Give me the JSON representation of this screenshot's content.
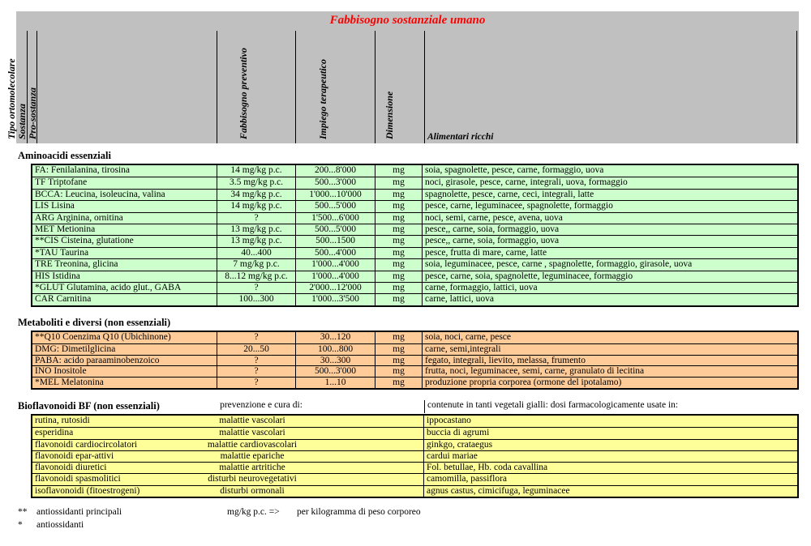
{
  "title": "Fabbisogno sostanziale umano",
  "header": {
    "rotated_labels": [
      "Tipo ortomolecolare",
      "Sostanza",
      "Pro-sostanza",
      "Fabbisogno preventivo",
      "Impiego terapeutico",
      "Dimensione"
    ],
    "alimentari_label": "Alimentari ricchi"
  },
  "colors": {
    "header_bg": "#c0c0c0",
    "title_red": "#ff0000",
    "aminoacidi_bg": "#ccffcc",
    "metaboliti_bg": "#ffcc99",
    "bioflavonoidi_bg": "#ffff99"
  },
  "sections": {
    "aminoacidi": {
      "heading": "Aminoacidi essenziali",
      "rows": [
        {
          "name": "FA: Fenilalanina, tirosina",
          "prev": "14 mg/kg p.c.",
          "ther": "200...8'000",
          "dim": "mg",
          "foods": "soia, spagnolette, pesce, carne, formaggio, uova"
        },
        {
          "name": "TF Triptofane",
          "prev": "3.5 mg/kg p.c.",
          "ther": "500...3'000",
          "dim": "mg",
          "foods": "noci, girasole, pesce, carne, integrali, uova, formaggio"
        },
        {
          "name": "BCCA: Leucina, isoleucina, valina",
          "prev": "34 mg/kg p.c.",
          "ther": "1'000...10'000",
          "dim": "mg",
          "foods": "spagnolette, pesce, carne, ceci, integrali, latte"
        },
        {
          "name": "LIS Lisina",
          "prev": "14 mg/kg p.c.",
          "ther": "500...5'000",
          "dim": "mg",
          "foods": "pesce, carne, leguminacee, spagnolette, formaggio"
        },
        {
          "name": "ARG Arginina, ornitina",
          "prev": "?",
          "ther": "1'500...6'000",
          "dim": "mg",
          "foods": "noci, semi, carne, pesce, avena, uova"
        },
        {
          "name": "MET Metionina",
          "prev": "13 mg/kg p.c.",
          "ther": "500...5'000",
          "dim": "mg",
          "foods": "pesce,, carne, soia, formaggio, uova"
        },
        {
          "name": "**CIS Cisteina, glutatione",
          "prev": "13 mg/kg p.c.",
          "ther": "500...1500",
          "dim": "mg",
          "foods": "pesce,, carne, soia, formaggio, uova"
        },
        {
          "name": "*TAU Taurina",
          "prev": "40...400",
          "ther": "500...4'000",
          "dim": "mg",
          "foods": "pesce, frutta di mare, carne, latte"
        },
        {
          "name": "TRE Treonina, glicina",
          "prev": "7 mg/kg p.c.",
          "ther": "1'000...4'000",
          "dim": "mg",
          "foods": "soia, leguminacee, pesce, carne , spagnolette, formaggio, girasole, uova"
        },
        {
          "name": "HIS Istidina",
          "prev": "8...12 mg/kg p.c.",
          "ther": "1'000...4'000",
          "dim": "mg",
          "foods": "pesce, carne, soia, spagnolette, leguminacee, formaggio"
        },
        {
          "name": "*GLUT Glutamina, acido glut., GABA",
          "prev": "?",
          "ther": "2'000...12'000",
          "dim": "mg",
          "foods": "carne, formaggio, lattici, uova"
        },
        {
          "name": "CAR Carnitina",
          "prev": "100...300",
          "ther": "1'000...3'500",
          "dim": "mg",
          "foods": "carne, lattici, uova"
        }
      ]
    },
    "metaboliti": {
      "heading": "Metaboliti e diversi (non essenziali)",
      "rows": [
        {
          "name": "**Q10 Coenzima Q10 (Ubichinone)",
          "prev": "?",
          "ther": "30...120",
          "dim": "mg",
          "foods": "soia, noci, carne, pesce"
        },
        {
          "name": "DMG: Dimetilglicina",
          "prev": "20...50",
          "ther": "100...800",
          "dim": "mg",
          "foods": "carne, semi,integrali"
        },
        {
          "name": "PABA: acido paraaminobenzoico",
          "prev": "?",
          "ther": "30...300",
          "dim": "mg",
          "foods": "fegato, integrali, lievito, melassa, frumento"
        },
        {
          "name": "INO Inositole",
          "prev": "?",
          "ther": "500...3'000",
          "dim": "mg",
          "foods": "frutta, noci, leguminacee, semi, carne, granulato di lecitina"
        },
        {
          "name": "*MEL Melatonina",
          "prev": "?",
          "ther": "1...10",
          "dim": "mg",
          "foods": "produzione propria corporea (ormone del ipotalamo)"
        }
      ]
    },
    "bioflavonoidi": {
      "heading": "Bioflavonoidi BF (non essenziali)",
      "sub1": "prevenzione e cura di:",
      "sub2": "contenute in tanti vegetali gialli: dosi farmacologicamente usate in:",
      "rows": [
        {
          "name": "rutina, rutosidi",
          "cura": "malattie vascolari",
          "foods": "ippocastano"
        },
        {
          "name": "esperidina",
          "cura": "malattie vascolari",
          "foods": "buccia di agrumi"
        },
        {
          "name": "flavonoidi cardiocircolatori",
          "cura": "malattie cardiovascolari",
          "foods": "ginkgo, crataegus"
        },
        {
          "name": "flavonoidi epar-attivi",
          "cura": "malattie epariche",
          "foods": "cardui mariae"
        },
        {
          "name": "flavonoidi diuretici",
          "cura": "malattie artritiche",
          "foods": "Fol. betullae, Hb. coda cavallina"
        },
        {
          "name": "flavonoidi spasmolitici",
          "cura": "disturbi neurovegetativi",
          "foods": "camomilla, passiflora"
        },
        {
          "name": "isoflavonoidi (fitoestrogeni)",
          "cura": "disturbi ormonali",
          "foods": "agnus castus, cimicifuga, leguminacee"
        }
      ]
    }
  },
  "footnotes": {
    "line1_marker": "**",
    "line1_text": "antiossidanti principali",
    "formula": "mg/kg p.c.  =>",
    "formula_meaning": "per kilogramma di peso corporeo",
    "line2_marker": "*",
    "line2_text": "antiossidanti"
  }
}
